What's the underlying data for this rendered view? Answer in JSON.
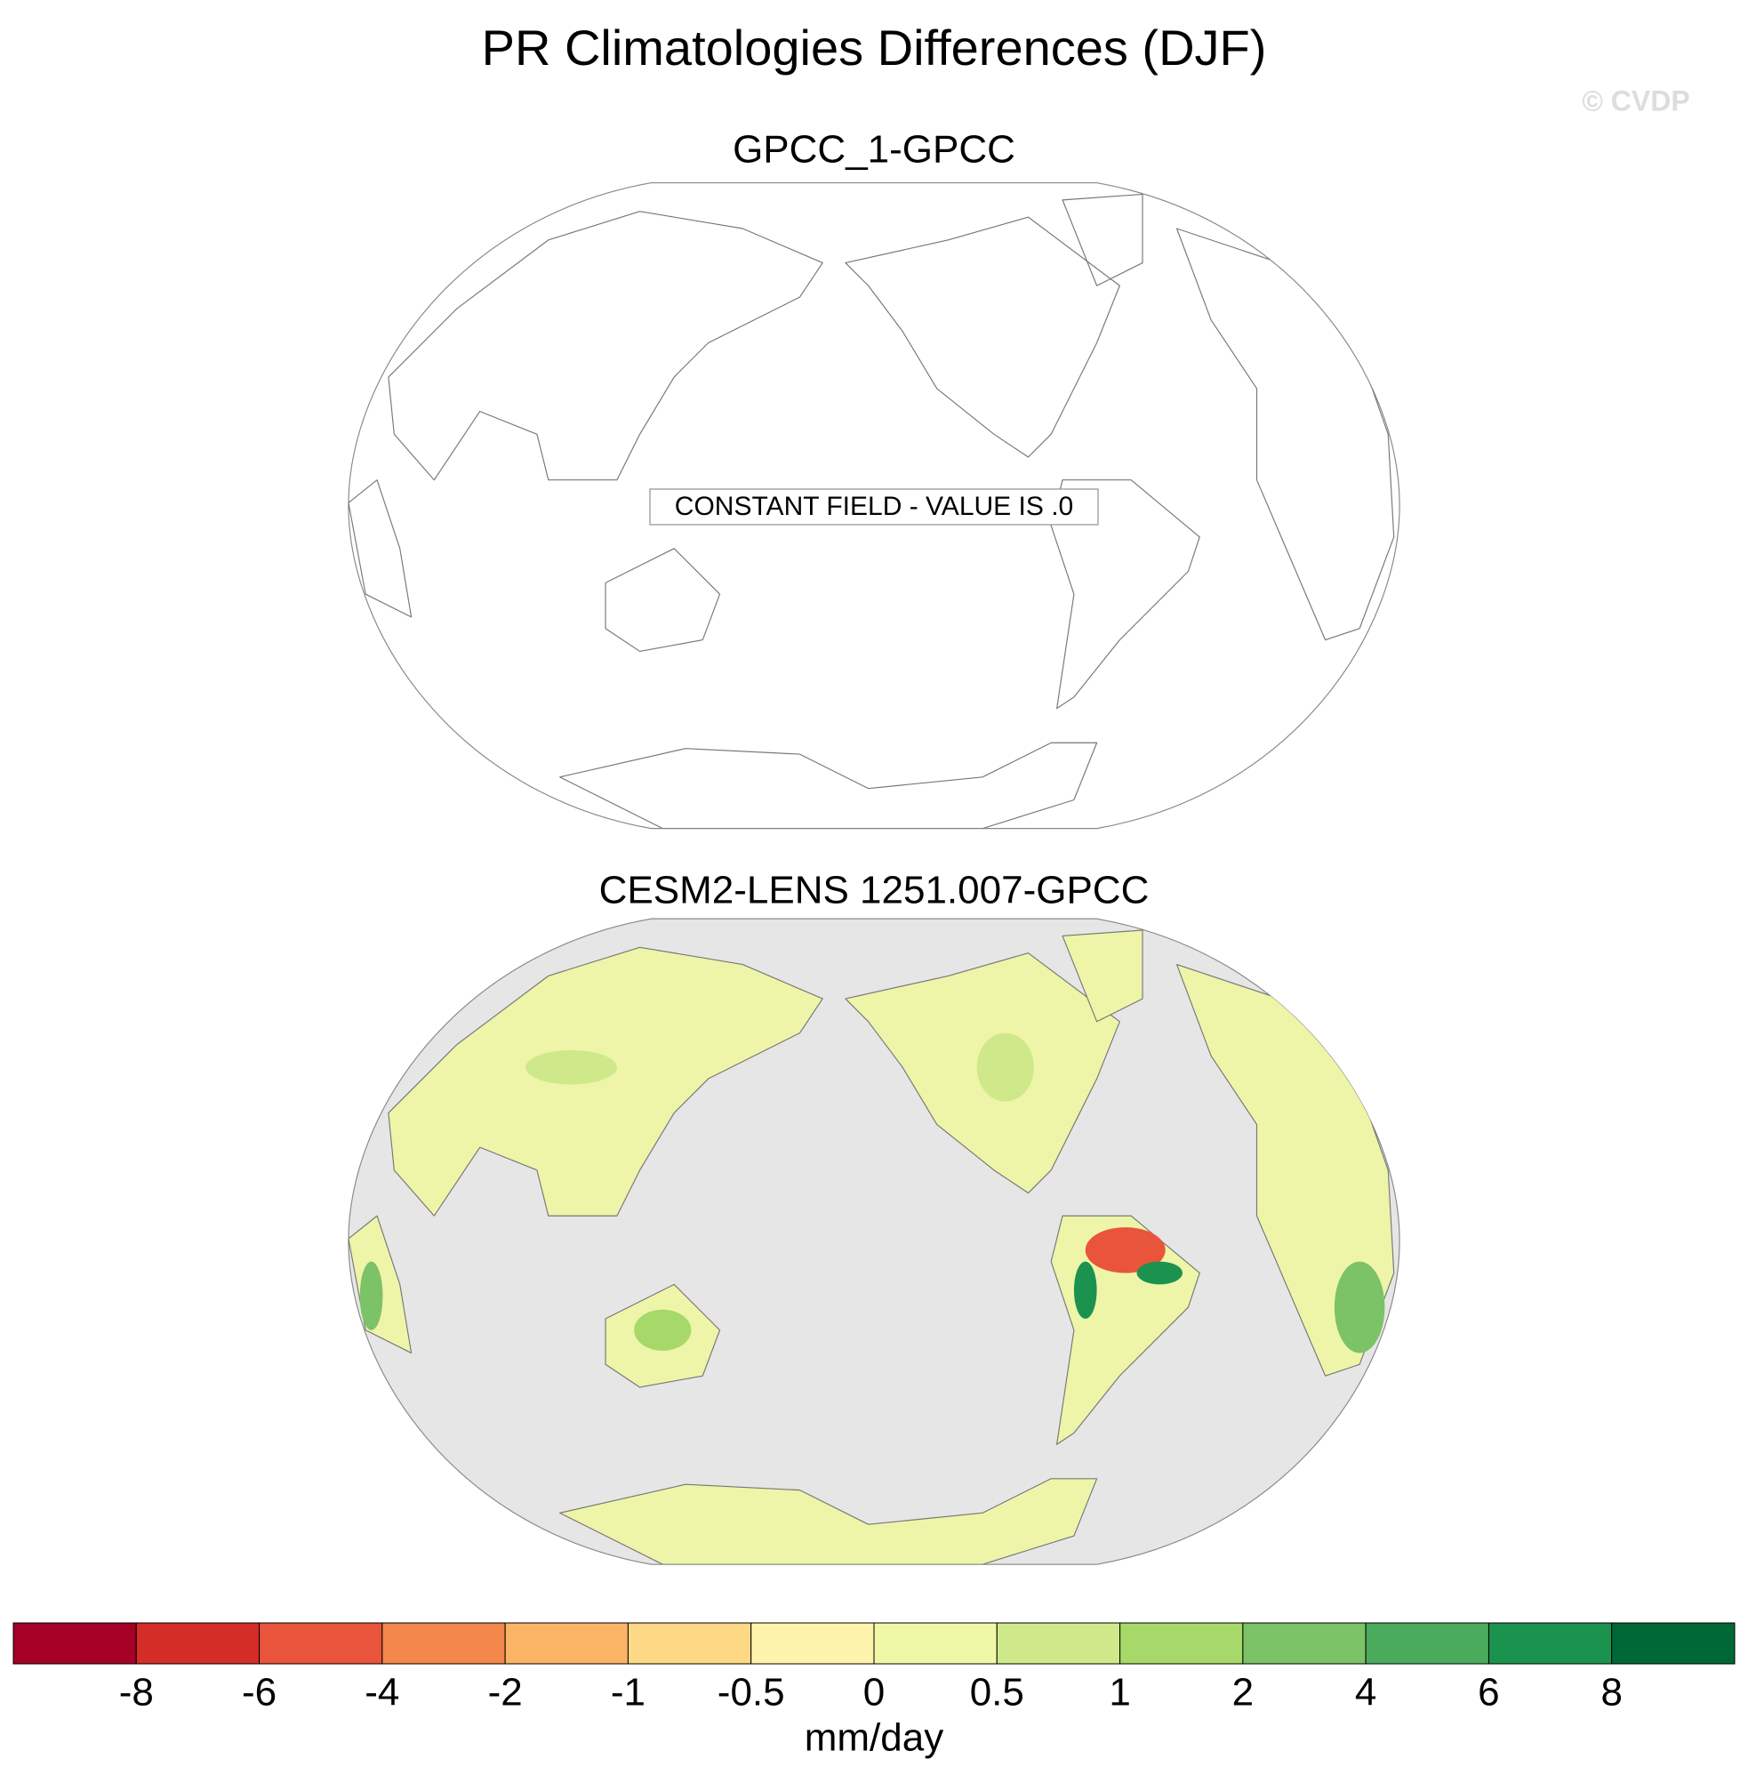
{
  "title": "PR Climatologies Differences (DJF)",
  "watermark": "© CVDP",
  "panels": [
    {
      "title": "GPCC_1-GPCC",
      "annotation": "CONSTANT FIELD - VALUE IS .0"
    },
    {
      "title": "CESM2-LENS 1251.007-GPCC"
    }
  ],
  "colorbar": {
    "levels": [
      -8,
      -6,
      -4,
      -2,
      -1,
      -0.5,
      0,
      0.5,
      1,
      2,
      4,
      6,
      8
    ],
    "colors": [
      "#a50026",
      "#d42d27",
      "#e8553a",
      "#f4874b",
      "#fbb366",
      "#fdd885",
      "#fef3ab",
      "#eff8a6",
      "#cfe98a",
      "#a7d86a",
      "#7cc266",
      "#4aab5c",
      "#1b934f",
      "#006837"
    ],
    "label": "mm/day"
  }
}
